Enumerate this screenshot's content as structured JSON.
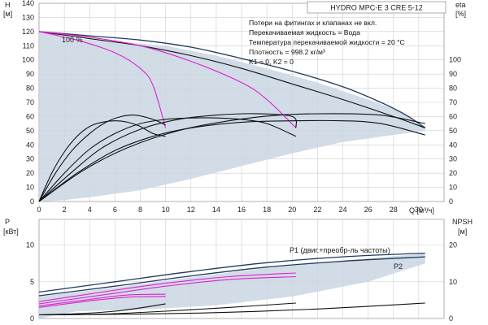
{
  "title": "HYDRO MPC-E 3 CRE 5-12",
  "notes": [
    "Потери на фитингах и клапанах не вкл.",
    "Перекачиваемая жидкость = Вода",
    "Температура перекачиваемой жидкости = 20 °C",
    "Плотность = 998.2 кг/м³",
    "K1 = 0, K2 = 0"
  ],
  "colors": {
    "envelope": "#c9d6e3",
    "head_curve": "#203a5e",
    "magenta": "#e020d0",
    "black": "#111111",
    "grid": "#cfcfcf"
  },
  "chart_data": [
    {
      "id": "top",
      "type": "line",
      "xlabel": "Q [м³/ч]",
      "x_ticks": [
        0,
        2,
        4,
        6,
        8,
        10,
        12,
        14,
        16,
        18,
        20,
        22,
        24,
        26,
        28,
        30
      ],
      "xlim": [
        0,
        32
      ],
      "left_axis": {
        "label_top": "H",
        "label_unit": "[м]",
        "ylim": [
          0,
          140
        ],
        "ticks": [
          0,
          10,
          20,
          30,
          40,
          50,
          60,
          70,
          80,
          90,
          100,
          110,
          120,
          130,
          140
        ]
      },
      "right_axis": {
        "label_top": "eta",
        "label_unit": "[%]",
        "ylim": [
          0,
          140
        ],
        "ticks": [
          0,
          10,
          20,
          30,
          40,
          50,
          60,
          70,
          80,
          90,
          100
        ]
      },
      "annotation": "100 %",
      "envelope_upper": [
        [
          0,
          120
        ],
        [
          3,
          115
        ],
        [
          6,
          113
        ],
        [
          10,
          110
        ],
        [
          14,
          103
        ],
        [
          18,
          94
        ],
        [
          22,
          84
        ],
        [
          26,
          72
        ],
        [
          28.5,
          64
        ],
        [
          30.5,
          53
        ]
      ],
      "envelope_lower": [
        [
          30.5,
          50
        ],
        [
          28,
          47
        ],
        [
          24,
          42
        ],
        [
          20,
          34
        ],
        [
          16,
          25
        ],
        [
          12,
          16
        ],
        [
          8,
          8
        ],
        [
          4,
          3
        ],
        [
          2,
          1
        ]
      ],
      "series": [
        {
          "role": "head",
          "color": "head_curve",
          "points": [
            [
              0,
              120
            ],
            [
              4,
              117
            ],
            [
              8,
              114
            ],
            [
              12,
              109
            ],
            [
              16,
              101
            ],
            [
              20,
              92
            ],
            [
              24,
              81
            ],
            [
              27,
              70
            ],
            [
              29,
              61
            ],
            [
              30.5,
              52
            ]
          ]
        },
        {
          "role": "head",
          "color": "black",
          "points": [
            [
              0,
              120
            ],
            [
              4,
              115
            ],
            [
              8,
              110
            ],
            [
              12,
              103
            ],
            [
              16,
              94
            ],
            [
              20,
              83
            ],
            [
              24,
              72
            ],
            [
              28,
              60
            ],
            [
              30.5,
              52
            ]
          ]
        },
        {
          "role": "head",
          "color": "magenta",
          "points": [
            [
              0,
              120
            ],
            [
              3,
              114
            ],
            [
              6,
              105
            ],
            [
              8,
              94
            ],
            [
              9,
              82
            ],
            [
              10,
              52
            ]
          ]
        },
        {
          "role": "head",
          "color": "magenta",
          "points": [
            [
              0,
              120
            ],
            [
              4,
              116
            ],
            [
              8,
              110
            ],
            [
              12,
              99
            ],
            [
              16,
              84
            ],
            [
              18,
              72
            ],
            [
              20.3,
              52
            ]
          ]
        },
        {
          "role": "eta",
          "color": "black",
          "points": [
            [
              0,
              0
            ],
            [
              1,
              20
            ],
            [
              2,
              35
            ],
            [
              3,
              46
            ],
            [
              4,
              53
            ],
            [
              5,
              56
            ],
            [
              6,
              57
            ],
            [
              7,
              56
            ],
            [
              8,
              53
            ],
            [
              9,
              48
            ],
            [
              10,
              46
            ]
          ]
        },
        {
          "role": "eta",
          "color": "black",
          "points": [
            [
              0,
              0
            ],
            [
              1.3,
              20
            ],
            [
              2.6,
              36
            ],
            [
              4,
              48
            ],
            [
              5.3,
              56
            ],
            [
              6.5,
              60
            ],
            [
              7.6,
              61
            ],
            [
              9,
              58
            ],
            [
              10,
              54
            ]
          ]
        },
        {
          "role": "eta",
          "color": "black",
          "points": [
            [
              0,
              0
            ],
            [
              2,
              20
            ],
            [
              4,
              37
            ],
            [
              6,
              48
            ],
            [
              8,
              55
            ],
            [
              10,
              58
            ],
            [
              12,
              59
            ],
            [
              14,
              59
            ],
            [
              16,
              58
            ],
            [
              18,
              55
            ],
            [
              20.3,
              46
            ]
          ]
        },
        {
          "role": "eta",
          "color": "black",
          "points": [
            [
              0,
              0
            ],
            [
              2.5,
              20
            ],
            [
              5,
              38
            ],
            [
              8,
              51
            ],
            [
              11,
              58
            ],
            [
              14,
              61
            ],
            [
              17,
              62
            ],
            [
              20,
              60
            ],
            [
              20.3,
              52
            ]
          ]
        },
        {
          "role": "eta",
          "color": "black",
          "points": [
            [
              0,
              0
            ],
            [
              3,
              20
            ],
            [
              6,
              36
            ],
            [
              9,
              46
            ],
            [
              12,
              52
            ],
            [
              16,
              56
            ],
            [
              20,
              57
            ],
            [
              24,
              57
            ],
            [
              27,
              55
            ],
            [
              30.5,
              47
            ]
          ]
        },
        {
          "role": "eta",
          "color": "black",
          "points": [
            [
              0,
              0
            ],
            [
              3.5,
              22
            ],
            [
              7,
              38
            ],
            [
              11,
              50
            ],
            [
              15,
              57
            ],
            [
              19,
              61
            ],
            [
              23,
              62
            ],
            [
              27,
              61
            ],
            [
              30.5,
              55
            ]
          ]
        }
      ]
    },
    {
      "id": "bottom",
      "type": "line",
      "xlim": [
        0,
        32
      ],
      "left_axis": {
        "label_top": "P",
        "label_unit": "[кВт]",
        "ylim": [
          0,
          13.5
        ],
        "ticks": [
          0,
          5,
          10
        ]
      },
      "right_axis": {
        "label_top": "NPSH",
        "label_unit": "[м]",
        "ylim": [
          0,
          27
        ],
        "ticks": [
          0,
          10,
          20
        ]
      },
      "envelope_upper": [
        [
          0,
          3
        ],
        [
          6,
          4.2
        ],
        [
          12,
          5.6
        ],
        [
          18,
          6.9
        ],
        [
          24,
          7.9
        ],
        [
          28,
          8.5
        ],
        [
          30.5,
          8.8
        ]
      ],
      "envelope_lower": [
        [
          30.5,
          7.5
        ],
        [
          26,
          5
        ],
        [
          20,
          3
        ],
        [
          14,
          1.8
        ],
        [
          8,
          1.2
        ],
        [
          3,
          1
        ]
      ],
      "series": [
        {
          "name": "P1 (двиг.+преобр-ль частоты)",
          "color": "head_curve",
          "points": [
            [
              0,
              3.6
            ],
            [
              6,
              5
            ],
            [
              12,
              6.4
            ],
            [
              18,
              7.6
            ],
            [
              24,
              8.4
            ],
            [
              30.5,
              8.9
            ]
          ]
        },
        {
          "name": "P2",
          "color": "head_curve",
          "points": [
            [
              0,
              3.1
            ],
            [
              6,
              4.4
            ],
            [
              12,
              5.8
            ],
            [
              18,
              7
            ],
            [
              24,
              7.8
            ],
            [
              30.5,
              8.4
            ]
          ]
        },
        {
          "role": "p",
          "color": "magenta",
          "points": [
            [
              0,
              1.7
            ],
            [
              4,
              2.6
            ],
            [
              7,
              3.2
            ],
            [
              10,
              3.3
            ]
          ]
        },
        {
          "role": "p",
          "color": "magenta",
          "points": [
            [
              0,
              1.5
            ],
            [
              4,
              2.4
            ],
            [
              7,
              2.9
            ],
            [
              10,
              3.0
            ]
          ]
        },
        {
          "role": "p",
          "color": "magenta",
          "points": [
            [
              0,
              2.3
            ],
            [
              5,
              3.6
            ],
            [
              10,
              4.8
            ],
            [
              15,
              5.7
            ],
            [
              20.3,
              6.2
            ]
          ]
        },
        {
          "role": "p",
          "color": "magenta",
          "points": [
            [
              0,
              2.0
            ],
            [
              5,
              3.2
            ],
            [
              10,
              4.4
            ],
            [
              15,
              5.3
            ],
            [
              20.3,
              5.7
            ]
          ]
        },
        {
          "role": "npsh",
          "color": "black",
          "points": [
            [
              0,
              1
            ],
            [
              3,
              1.3
            ],
            [
              6,
              2
            ],
            [
              8,
              2.9
            ],
            [
              10,
              4.0
            ]
          ]
        },
        {
          "role": "npsh",
          "color": "black",
          "points": [
            [
              0,
              1
            ],
            [
              5,
              1.2
            ],
            [
              10,
              2
            ],
            [
              15,
              3
            ],
            [
              20.3,
              4.2
            ]
          ]
        },
        {
          "role": "npsh",
          "color": "black",
          "points": [
            [
              0,
              1
            ],
            [
              8,
              1.2
            ],
            [
              15,
              1.7
            ],
            [
              22,
              2.6
            ],
            [
              30.5,
              4.2
            ]
          ]
        }
      ]
    }
  ]
}
